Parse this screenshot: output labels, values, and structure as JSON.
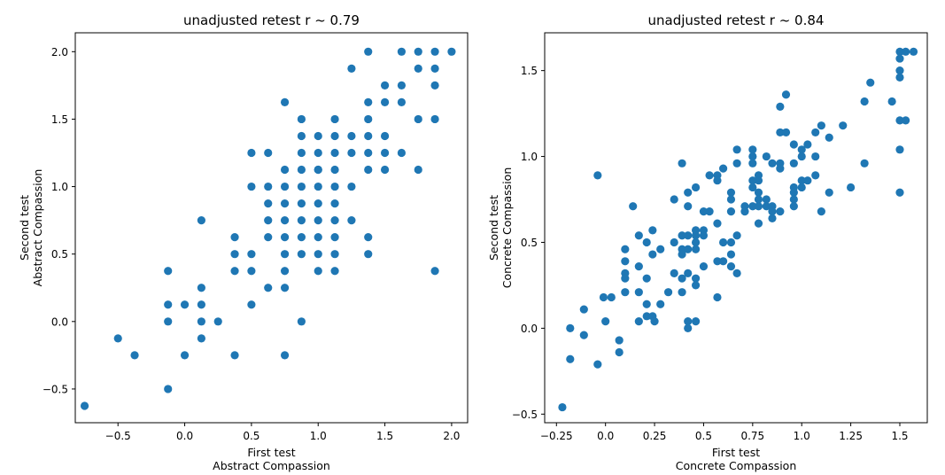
{
  "chart_data": [
    {
      "type": "scatter",
      "title": "unadjusted retest r ~ 0.79",
      "xlabel": [
        "First test",
        "Abstract Compassion"
      ],
      "ylabel": [
        "Second test",
        "Abstract Compassion"
      ],
      "xlim": [
        -0.82,
        2.12
      ],
      "ylim": [
        -0.75,
        2.14
      ],
      "xticks": [
        -0.5,
        0.0,
        0.5,
        1.0,
        1.5,
        2.0
      ],
      "yticks": [
        -0.5,
        0.0,
        0.5,
        1.0,
        1.5,
        2.0
      ],
      "grid": false,
      "color": "#1f77b4",
      "x": [
        -0.75,
        -0.5,
        -0.375,
        -0.125,
        -0.125,
        -0.125,
        -0.125,
        0.0,
        0.0,
        0.125,
        0.125,
        0.125,
        0.125,
        0.125,
        0.25,
        0.375,
        0.375,
        0.375,
        0.375,
        0.5,
        0.5,
        0.5,
        0.5,
        0.5,
        0.625,
        0.625,
        0.625,
        0.625,
        0.625,
        0.625,
        0.75,
        0.75,
        0.75,
        0.75,
        0.75,
        0.75,
        0.75,
        0.75,
        0.75,
        0.75,
        0.875,
        0.875,
        0.875,
        0.875,
        0.875,
        0.875,
        0.875,
        0.875,
        0.875,
        0.875,
        1.0,
        1.0,
        1.0,
        1.0,
        1.0,
        1.0,
        1.0,
        1.0,
        1.0,
        1.0,
        1.125,
        1.125,
        1.125,
        1.125,
        1.125,
        1.125,
        1.125,
        1.125,
        1.125,
        1.125,
        1.25,
        1.25,
        1.25,
        1.25,
        1.25,
        1.375,
        1.375,
        1.375,
        1.375,
        1.375,
        1.375,
        1.375,
        1.375,
        1.5,
        1.5,
        1.5,
        1.5,
        1.5,
        1.625,
        1.625,
        1.625,
        1.625,
        1.75,
        1.75,
        1.75,
        1.75,
        1.875,
        1.875,
        1.875,
        1.875,
        1.875,
        2.0
      ],
      "y": [
        -0.625,
        -0.125,
        -0.25,
        0.375,
        0.125,
        0.0,
        -0.5,
        0.125,
        -0.25,
        0.75,
        0.25,
        0.125,
        0.0,
        -0.125,
        0.0,
        0.625,
        0.5,
        0.375,
        -0.25,
        1.25,
        1.0,
        0.5,
        0.375,
        0.125,
        1.25,
        1.0,
        0.875,
        0.75,
        0.625,
        0.25,
        1.625,
        1.125,
        1.0,
        0.875,
        0.75,
        0.625,
        0.5,
        0.375,
        0.25,
        -0.25,
        1.5,
        1.375,
        1.25,
        1.125,
        1.0,
        0.875,
        0.75,
        0.625,
        0.5,
        0.0,
        1.375,
        1.25,
        1.125,
        1.0,
        0.875,
        0.75,
        0.625,
        0.5,
        0.375,
        1.125,
        1.5,
        1.375,
        1.25,
        1.125,
        1.0,
        0.875,
        0.75,
        0.625,
        0.5,
        0.375,
        1.875,
        1.375,
        1.25,
        1.0,
        0.75,
        2.0,
        1.625,
        1.5,
        1.375,
        1.25,
        1.125,
        0.625,
        0.5,
        1.75,
        1.625,
        1.375,
        1.25,
        1.125,
        2.0,
        1.75,
        1.625,
        1.25,
        2.0,
        1.875,
        1.5,
        1.125,
        2.0,
        1.875,
        1.75,
        1.5,
        0.375,
        2.0
      ]
    },
    {
      "type": "scatter",
      "title": "unadjusted retest r ~ 0.84",
      "xlabel": [
        "First test",
        "Concrete Compassion"
      ],
      "ylabel": [
        "Second test",
        "Concrete Compassion"
      ],
      "xlim": [
        -0.31,
        1.64
      ],
      "ylim": [
        -0.55,
        1.72
      ],
      "xticks": [
        -0.25,
        0.0,
        0.25,
        0.5,
        0.75,
        1.0,
        1.25,
        1.5
      ],
      "yticks": [
        -0.5,
        0.0,
        0.5,
        1.0,
        1.5
      ],
      "grid": false,
      "color": "#1f77b4",
      "x": [
        -0.22,
        -0.18,
        -0.18,
        -0.11,
        -0.11,
        -0.04,
        -0.04,
        -0.01,
        0.0,
        0.03,
        0.07,
        0.07,
        0.1,
        0.1,
        0.1,
        0.1,
        0.1,
        0.14,
        0.17,
        0.17,
        0.17,
        0.17,
        0.21,
        0.21,
        0.21,
        0.21,
        0.24,
        0.24,
        0.24,
        0.25,
        0.28,
        0.28,
        0.32,
        0.35,
        0.35,
        0.35,
        0.39,
        0.39,
        0.39,
        0.39,
        0.39,
        0.39,
        0.42,
        0.42,
        0.42,
        0.42,
        0.42,
        0.42,
        0.42,
        0.46,
        0.46,
        0.46,
        0.46,
        0.46,
        0.46,
        0.46,
        0.46,
        0.5,
        0.5,
        0.5,
        0.5,
        0.53,
        0.53,
        0.57,
        0.57,
        0.57,
        0.57,
        0.57,
        0.6,
        0.6,
        0.6,
        0.64,
        0.64,
        0.64,
        0.64,
        0.64,
        0.64,
        0.67,
        0.67,
        0.67,
        0.67,
        0.71,
        0.71,
        0.75,
        0.75,
        0.75,
        0.75,
        0.75,
        0.75,
        0.78,
        0.78,
        0.78,
        0.78,
        0.78,
        0.78,
        0.82,
        0.82,
        0.82,
        0.85,
        0.85,
        0.85,
        0.85,
        0.89,
        0.89,
        0.89,
        0.89,
        0.89,
        0.92,
        0.92,
        0.96,
        0.96,
        0.96,
        0.96,
        0.96,
        0.96,
        1.0,
        1.0,
        1.0,
        1.0,
        1.03,
        1.03,
        1.07,
        1.07,
        1.07,
        1.1,
        1.1,
        1.14,
        1.14,
        1.21,
        1.25,
        1.32,
        1.32,
        1.35,
        1.46,
        1.5,
        1.5,
        1.5,
        1.5,
        1.5,
        1.5,
        1.5,
        1.53,
        1.53,
        1.57
      ],
      "y": [
        -0.46,
        0.0,
        -0.18,
        0.11,
        -0.04,
        0.89,
        -0.21,
        0.18,
        0.04,
        0.18,
        -0.07,
        -0.14,
        0.46,
        0.39,
        0.32,
        0.29,
        0.21,
        0.71,
        0.54,
        0.36,
        0.21,
        0.04,
        0.5,
        0.29,
        0.14,
        0.07,
        0.57,
        0.43,
        0.07,
        0.04,
        0.46,
        0.14,
        0.21,
        0.75,
        0.5,
        0.32,
        0.96,
        0.54,
        0.46,
        0.43,
        0.29,
        0.21,
        0.79,
        0.71,
        0.54,
        0.46,
        0.32,
        0.04,
        0.0,
        0.82,
        0.57,
        0.54,
        0.5,
        0.46,
        0.29,
        0.25,
        0.04,
        0.68,
        0.57,
        0.54,
        0.36,
        0.89,
        0.68,
        0.89,
        0.86,
        0.61,
        0.39,
        0.18,
        0.93,
        0.5,
        0.39,
        0.79,
        0.75,
        0.68,
        0.5,
        0.43,
        0.36,
        1.04,
        0.96,
        0.54,
        0.32,
        0.68,
        0.71,
        1.04,
        1.0,
        0.96,
        0.86,
        0.82,
        0.71,
        0.89,
        0.86,
        0.79,
        0.75,
        0.71,
        0.61,
        1.0,
        0.75,
        0.71,
        0.96,
        0.68,
        0.71,
        0.64,
        1.29,
        1.14,
        0.96,
        0.93,
        0.68,
        1.36,
        1.14,
        1.07,
        0.82,
        0.79,
        0.75,
        0.71,
        0.96,
        1.04,
        1.0,
        0.86,
        0.82,
        1.07,
        0.86,
        1.14,
        1.0,
        0.89,
        1.18,
        0.68,
        1.11,
        0.79,
        1.18,
        0.82,
        1.32,
        0.96,
        1.43,
        1.32,
        1.61,
        1.57,
        1.5,
        1.46,
        1.04,
        0.79,
        1.21,
        1.61,
        1.21,
        1.61
      ]
    }
  ]
}
